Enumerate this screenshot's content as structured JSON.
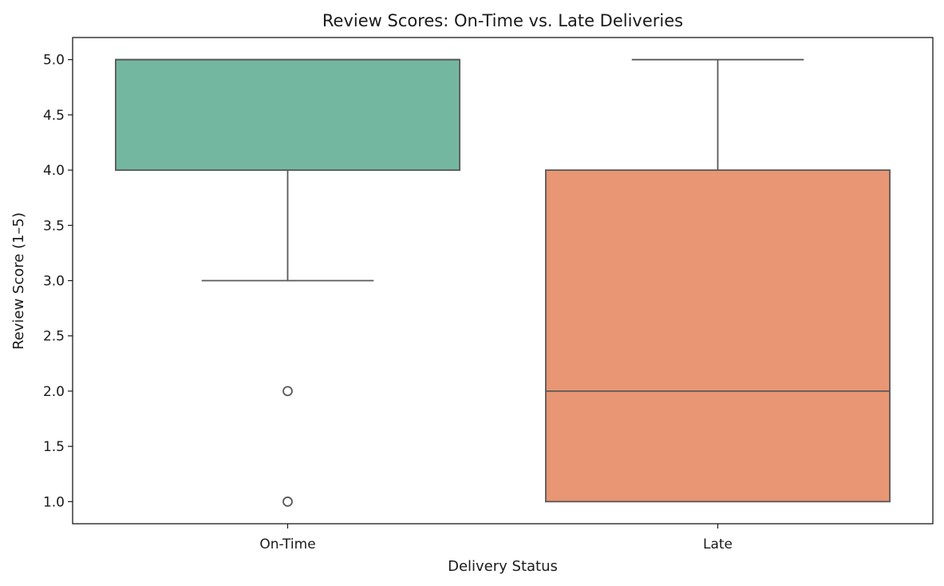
{
  "chart_data": {
    "type": "box",
    "title": "Review Scores: On-Time vs. Late Deliveries",
    "xlabel": "Delivery Status",
    "ylabel": "Review Score (1–5)",
    "ylim": [
      0.8,
      5.2
    ],
    "yticks": [
      "1.0",
      "1.5",
      "2.0",
      "2.5",
      "3.0",
      "3.5",
      "4.0",
      "4.5",
      "5.0"
    ],
    "grid": false,
    "legend": "none",
    "categories": [
      "On-Time",
      "Late"
    ],
    "boxes": [
      {
        "category": "On-Time",
        "q1": 4.0,
        "median": 5.0,
        "q3": 5.0,
        "whisker_low": 3.0,
        "whisker_high": 5.0,
        "outliers": [
          2.0,
          1.0
        ],
        "color": "#74b7a1"
      },
      {
        "category": "Late",
        "q1": 1.0,
        "median": 2.0,
        "q3": 4.0,
        "whisker_low": 1.0,
        "whisker_high": 5.0,
        "outliers": [],
        "color": "#e89674"
      }
    ],
    "line_color": "#595959"
  }
}
